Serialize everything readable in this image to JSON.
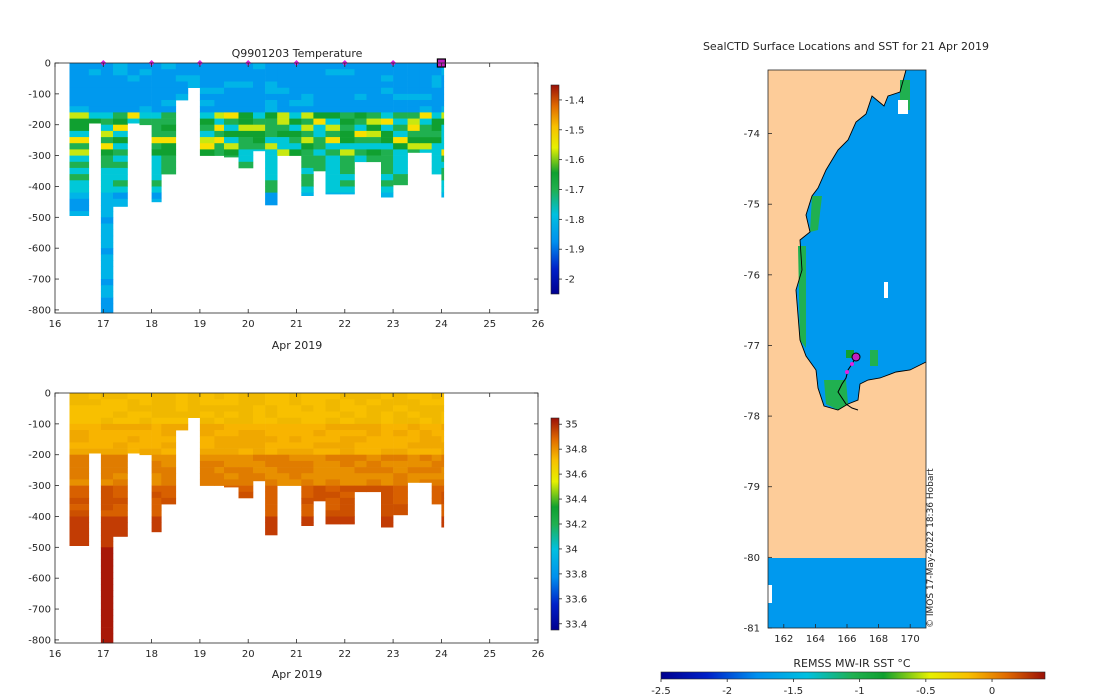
{
  "chart_data": [
    {
      "type": "heatmap",
      "title": "Q9901203  Temperature",
      "xlabel": "Apr 2019",
      "x_ticks": [
        "16",
        "17",
        "18",
        "19",
        "20",
        "21",
        "22",
        "23",
        "24",
        "25",
        "26"
      ],
      "xlim": [
        16,
        26
      ],
      "ylim": [
        -810,
        0
      ],
      "y_ticks": [
        "0",
        "-100",
        "-200",
        "-300",
        "-400",
        "-500",
        "-600",
        "-700",
        "-800"
      ],
      "colorbar_ticks": [
        "-1.4",
        "-1.5",
        "-1.6",
        "-1.7",
        "-1.8",
        "-1.9",
        "-2"
      ],
      "colorbar_range": [
        -2.05,
        -1.35
      ],
      "profile_days": [
        16.3,
        16.7,
        16.95,
        17.2,
        17.5,
        17.75,
        18.0,
        18.2,
        18.5,
        18.75,
        19.0,
        19.3,
        19.5,
        19.8,
        20.1,
        20.35,
        20.6,
        20.85,
        21.1,
        21.35,
        21.6,
        21.9,
        22.2,
        22.45,
        22.75,
        23.0,
        23.3,
        23.55,
        23.8,
        24.0
      ],
      "profile_max_depth": [
        -495,
        -195,
        -810,
        -465,
        -195,
        -200,
        -450,
        -360,
        -120,
        -80,
        -300,
        -300,
        -305,
        -340,
        -285,
        -460,
        -300,
        -300,
        -430,
        -350,
        -425,
        -425,
        -320,
        -320,
        -435,
        -395,
        -290,
        -290,
        -360,
        -435
      ],
      "surface_markers": [
        17,
        18,
        19,
        20,
        21,
        22,
        23
      ],
      "current_marker": 24
    },
    {
      "type": "heatmap",
      "title": "",
      "xlabel": "Apr 2019",
      "x_ticks": [
        "16",
        "17",
        "18",
        "19",
        "20",
        "21",
        "22",
        "23",
        "24",
        "25",
        "26"
      ],
      "xlim": [
        16,
        26
      ],
      "ylim": [
        -810,
        0
      ],
      "y_ticks": [
        "0",
        "-100",
        "-200",
        "-300",
        "-400",
        "-500",
        "-600",
        "-700",
        "-800"
      ],
      "colorbar_ticks": [
        "35",
        "34.8",
        "34.6",
        "34.4",
        "34.2",
        "34",
        "33.8",
        "33.6",
        "33.4"
      ],
      "colorbar_range": [
        33.35,
        35.05
      ]
    },
    {
      "type": "map",
      "title": "SealCTD Surface Locations and SST for 21 Apr 2019",
      "x_ticks": [
        "162",
        "164",
        "166",
        "168",
        "170"
      ],
      "xlim": [
        161,
        171
      ],
      "y_ticks": [
        "-74",
        "-75",
        "-76",
        "-77",
        "-78",
        "-79",
        "-80",
        "-81"
      ],
      "ylim": [
        -81,
        -73.1
      ],
      "colorbar_label": "REMSS MW-IR SST °C",
      "colorbar_ticks": [
        "-2.5",
        "-2",
        "-1.5",
        "-1",
        "-0.5",
        "0"
      ],
      "colorbar_range": [
        -2.5,
        0.4
      ],
      "credit": "© IMOS 17-May-2022 18:36 Hobart"
    }
  ]
}
